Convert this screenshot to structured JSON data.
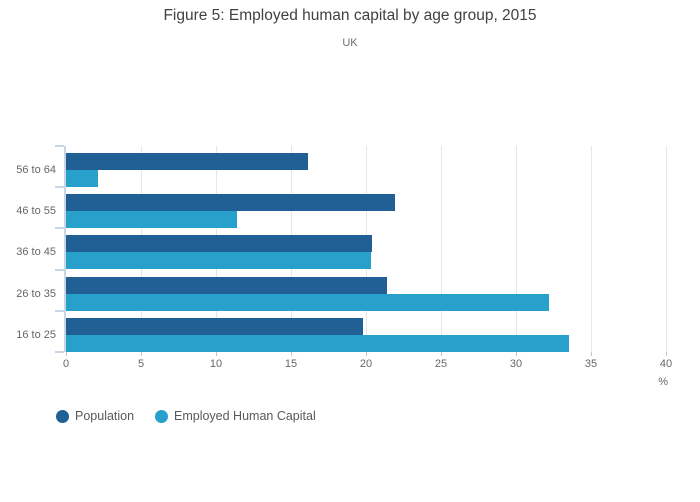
{
  "title": "Figure 5: Employed human capital by age group, 2015",
  "subtitle": "UK",
  "chart_data": {
    "type": "bar",
    "orientation": "horizontal",
    "title": "Figure 5: Employed human capital by age group, 2015",
    "subtitle": "UK",
    "categories": [
      "56 to 64",
      "46 to 55",
      "36 to 45",
      "26 to 35",
      "16 to 25"
    ],
    "series": [
      {
        "name": "Population",
        "color": "#206095",
        "values": [
          16.1,
          21.9,
          20.4,
          21.4,
          19.8
        ]
      },
      {
        "name": "Employed Human Capital",
        "color": "#27a0cc",
        "values": [
          2.1,
          11.4,
          20.3,
          32.2,
          33.5
        ]
      }
    ],
    "xlabel": "%",
    "ylabel": "",
    "xlim": [
      0,
      40
    ],
    "xticks": [
      0,
      5,
      10,
      15,
      20,
      25,
      30,
      35,
      40
    ],
    "grid": true,
    "legend_position": "bottom-left"
  },
  "colors": {
    "axis_line": "#c9d7e4",
    "gridline": "#e6e6e6",
    "tick_stub": "#c4c4c4",
    "title_text": "#414042",
    "subtitle_text": "#6d6e71",
    "axis_text": "#666666",
    "legend_text": "#58595b"
  }
}
